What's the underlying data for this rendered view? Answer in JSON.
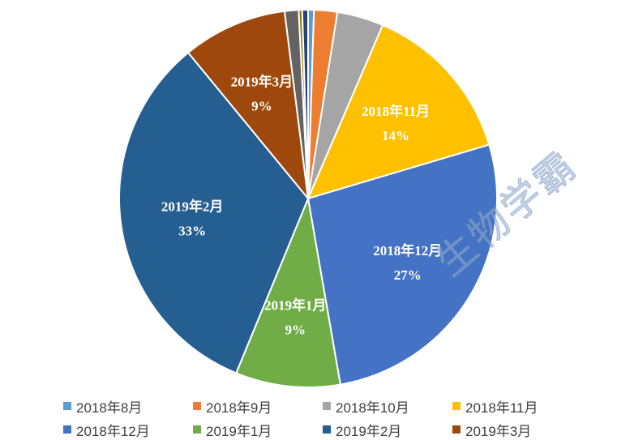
{
  "chart_data": {
    "type": "pie",
    "categories": [
      "2018年8月",
      "2018年9月",
      "2018年10月",
      "2018年11月",
      "2018年12月",
      "2019年1月",
      "2019年2月",
      "2019年3月",
      "",
      "",
      ""
    ],
    "values": [
      0.5,
      2,
      4,
      14,
      27,
      9,
      33,
      9,
      1.2,
      0.3,
      0.5
    ],
    "colors": [
      "#5B9BD5",
      "#ED7D31",
      "#A5A5A5",
      "#FFC000",
      "#4472C4",
      "#70AD47",
      "#255E91",
      "#9E480E",
      "#636363",
      "#997300",
      "#264478"
    ],
    "data_labels": [
      {
        "index": 3,
        "name": "2018年11月",
        "percent": "14%"
      },
      {
        "index": 4,
        "name": "2018年12月",
        "percent": "27%"
      },
      {
        "index": 5,
        "name": "2019年1月",
        "percent": "9%"
      },
      {
        "index": 6,
        "name": "2019年2月",
        "percent": "33%"
      },
      {
        "index": 7,
        "name": "2019年3月",
        "percent": "9%"
      }
    ],
    "legend": {
      "position": "bottom",
      "entries": [
        "2018年8月",
        "2018年9月",
        "2018年10月",
        "2018年11月",
        "2018年12月",
        "2019年1月",
        "2019年2月",
        "2019年3月"
      ]
    },
    "start_angle_deg": 0,
    "direction": "clockwise"
  },
  "watermark": "生物学霸"
}
